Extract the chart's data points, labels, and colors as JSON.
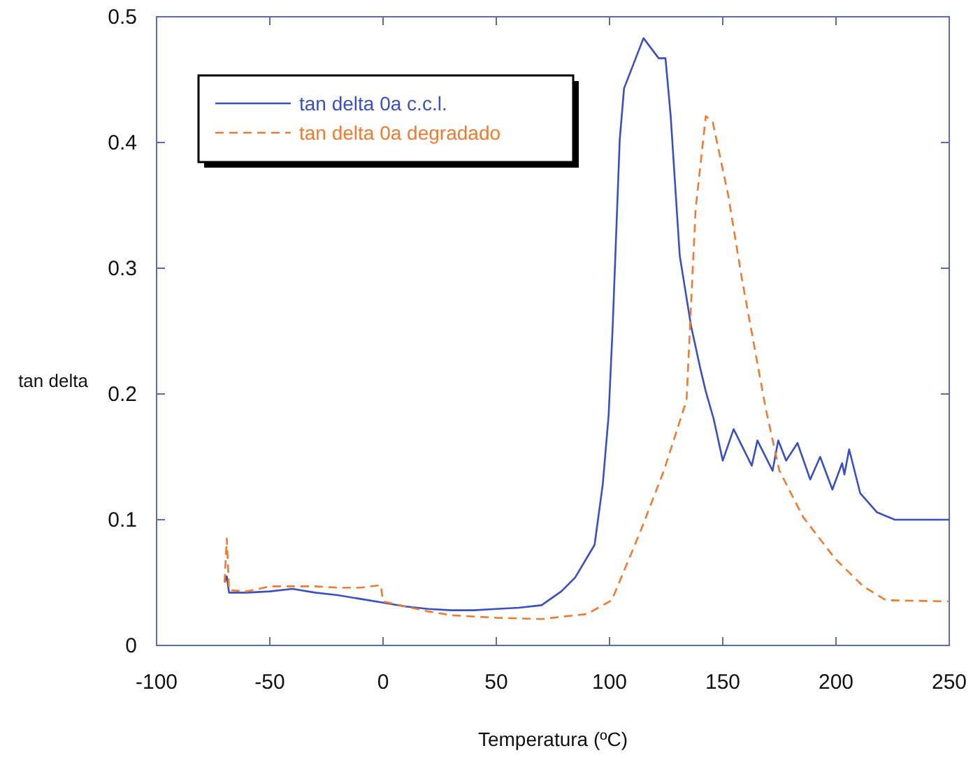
{
  "chart_data": {
    "type": "line",
    "xlabel": "Temperatura (ºC)",
    "ylabel": "tan delta",
    "xlim": [
      -100,
      250
    ],
    "ylim": [
      0,
      0.5
    ],
    "xticks": [
      -100,
      -50,
      0,
      50,
      100,
      150,
      200,
      250
    ],
    "yticks": [
      0,
      0.1,
      0.2,
      0.3,
      0.4,
      0.5
    ],
    "grid": false,
    "legend": "top left",
    "series": [
      {
        "name": "tan delta 0a c.c.l.",
        "color": "#3a4fc0",
        "line_style": "solid",
        "x": [
          -70,
          -69,
          -68,
          -60,
          -50,
          -40,
          -30,
          -20,
          -10,
          0,
          10,
          20,
          30,
          40,
          50,
          60,
          70,
          78.7,
          84.8,
          93.4,
          97,
          99.6,
          101.4,
          104.5,
          106.4,
          115,
          121.7,
          124.7,
          127,
          131,
          136,
          140,
          142.5,
          146,
          150,
          154.8,
          162.8,
          165.3,
          172,
          174.5,
          178,
          183,
          188.6,
          193,
          198.4,
          202.7,
          203.7,
          205.8,
          210.7,
          218,
          226,
          250
        ],
        "values": [
          0.05,
          0.055,
          0.042,
          0.042,
          0.043,
          0.045,
          0.042,
          0.04,
          0.037,
          0.034,
          0.031,
          0.029,
          0.028,
          0.028,
          0.029,
          0.03,
          0.032,
          0.043,
          0.054,
          0.08,
          0.128,
          0.183,
          0.254,
          0.402,
          0.443,
          0.483,
          0.467,
          0.467,
          0.421,
          0.31,
          0.254,
          0.221,
          0.202,
          0.18,
          0.147,
          0.172,
          0.143,
          0.163,
          0.139,
          0.163,
          0.147,
          0.161,
          0.132,
          0.15,
          0.124,
          0.145,
          0.136,
          0.156,
          0.121,
          0.106,
          0.1,
          0.1
        ]
      },
      {
        "name": "tan delta 0a degradado",
        "color": "#f07a30",
        "line_style": "dashed",
        "x": [
          -70,
          -69,
          -68,
          -60,
          -50,
          -40,
          -30,
          -20,
          -10,
          -1,
          0,
          10,
          20,
          30,
          50,
          70,
          90,
          101,
          113.7,
          124,
          134,
          138,
          142.5,
          145.6,
          152.4,
          158.5,
          169,
          175,
          185.5,
          199.6,
          212,
          222,
          250
        ],
        "values": [
          0.05,
          0.085,
          0.044,
          0.043,
          0.047,
          0.047,
          0.047,
          0.046,
          0.046,
          0.048,
          0.035,
          0.031,
          0.027,
          0.024,
          0.022,
          0.021,
          0.025,
          0.036,
          0.091,
          0.139,
          0.195,
          0.347,
          0.421,
          0.416,
          0.358,
          0.291,
          0.188,
          0.139,
          0.102,
          0.069,
          0.047,
          0.036,
          0.035
        ]
      }
    ]
  }
}
